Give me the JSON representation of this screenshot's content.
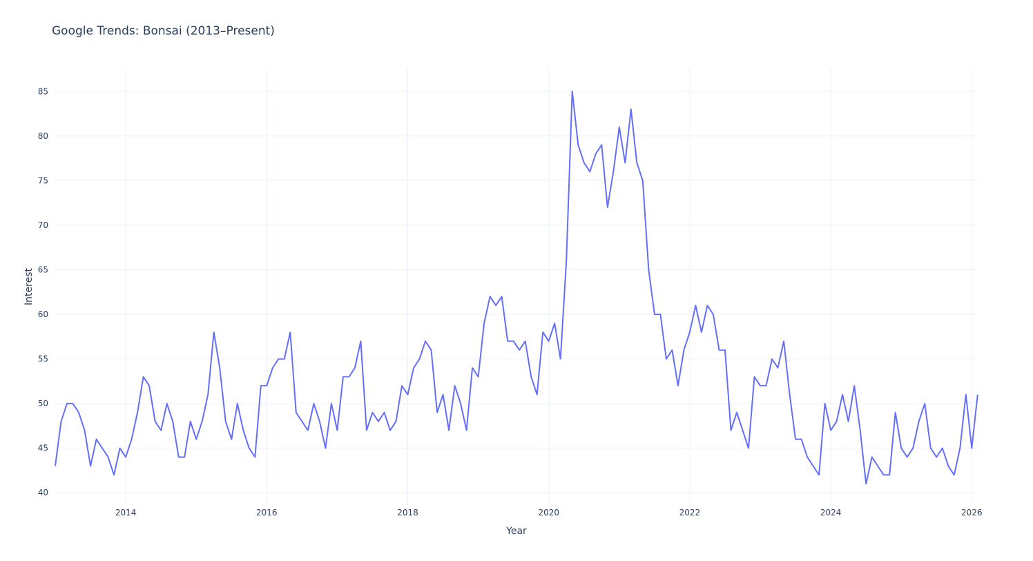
{
  "chart_data": {
    "type": "line",
    "title": "Google Trends: Bonsai (2013–Present)",
    "xlabel": "Year",
    "ylabel": "Interest",
    "start": [
      2013,
      1
    ],
    "frequency": "monthly",
    "xlim": [
      2013.0,
      2026.085
    ],
    "ylim": [
      38.7,
      87.5
    ],
    "xticks": [
      2014,
      2016,
      2018,
      2020,
      2022,
      2024,
      2026
    ],
    "xtick_labels": [
      "2014",
      "2016",
      "2018",
      "2020",
      "2022",
      "2024",
      "2026"
    ],
    "yticks": [
      40,
      45,
      50,
      55,
      60,
      65,
      70,
      75,
      80,
      85
    ],
    "ytick_labels": [
      "40",
      "45",
      "50",
      "55",
      "60",
      "65",
      "70",
      "75",
      "80",
      "85"
    ],
    "grid": true,
    "line_color": "#636efa",
    "series": [
      {
        "name": "Bonsai",
        "values": [
          43,
          48,
          50,
          50,
          49,
          47,
          43,
          46,
          45,
          44,
          42,
          45,
          44,
          46,
          49,
          53,
          52,
          48,
          47,
          50,
          48,
          44,
          44,
          48,
          46,
          48,
          51,
          58,
          54,
          48,
          46,
          50,
          47,
          45,
          44,
          52,
          52,
          54,
          55,
          55,
          58,
          49,
          48,
          47,
          50,
          48,
          45,
          50,
          47,
          53,
          53,
          54,
          57,
          47,
          49,
          48,
          49,
          47,
          48,
          52,
          51,
          54,
          55,
          57,
          56,
          49,
          51,
          47,
          52,
          50,
          47,
          54,
          53,
          59,
          62,
          61,
          62,
          57,
          57,
          56,
          57,
          53,
          51,
          58,
          57,
          59,
          55,
          66,
          85,
          79,
          77,
          76,
          78,
          79,
          72,
          76,
          81,
          77,
          83,
          77,
          75,
          65,
          60,
          60,
          55,
          56,
          52,
          56,
          58,
          61,
          58,
          61,
          60,
          56,
          56,
          47,
          49,
          47,
          45,
          53,
          52,
          52,
          55,
          54,
          57,
          51,
          46,
          46,
          44,
          43,
          42,
          50,
          47,
          48,
          51,
          48,
          52,
          47,
          41,
          44,
          43,
          42,
          42,
          49,
          45,
          44,
          45,
          48,
          50,
          45,
          44,
          45,
          43,
          42,
          45,
          51,
          45,
          51
        ]
      }
    ]
  }
}
